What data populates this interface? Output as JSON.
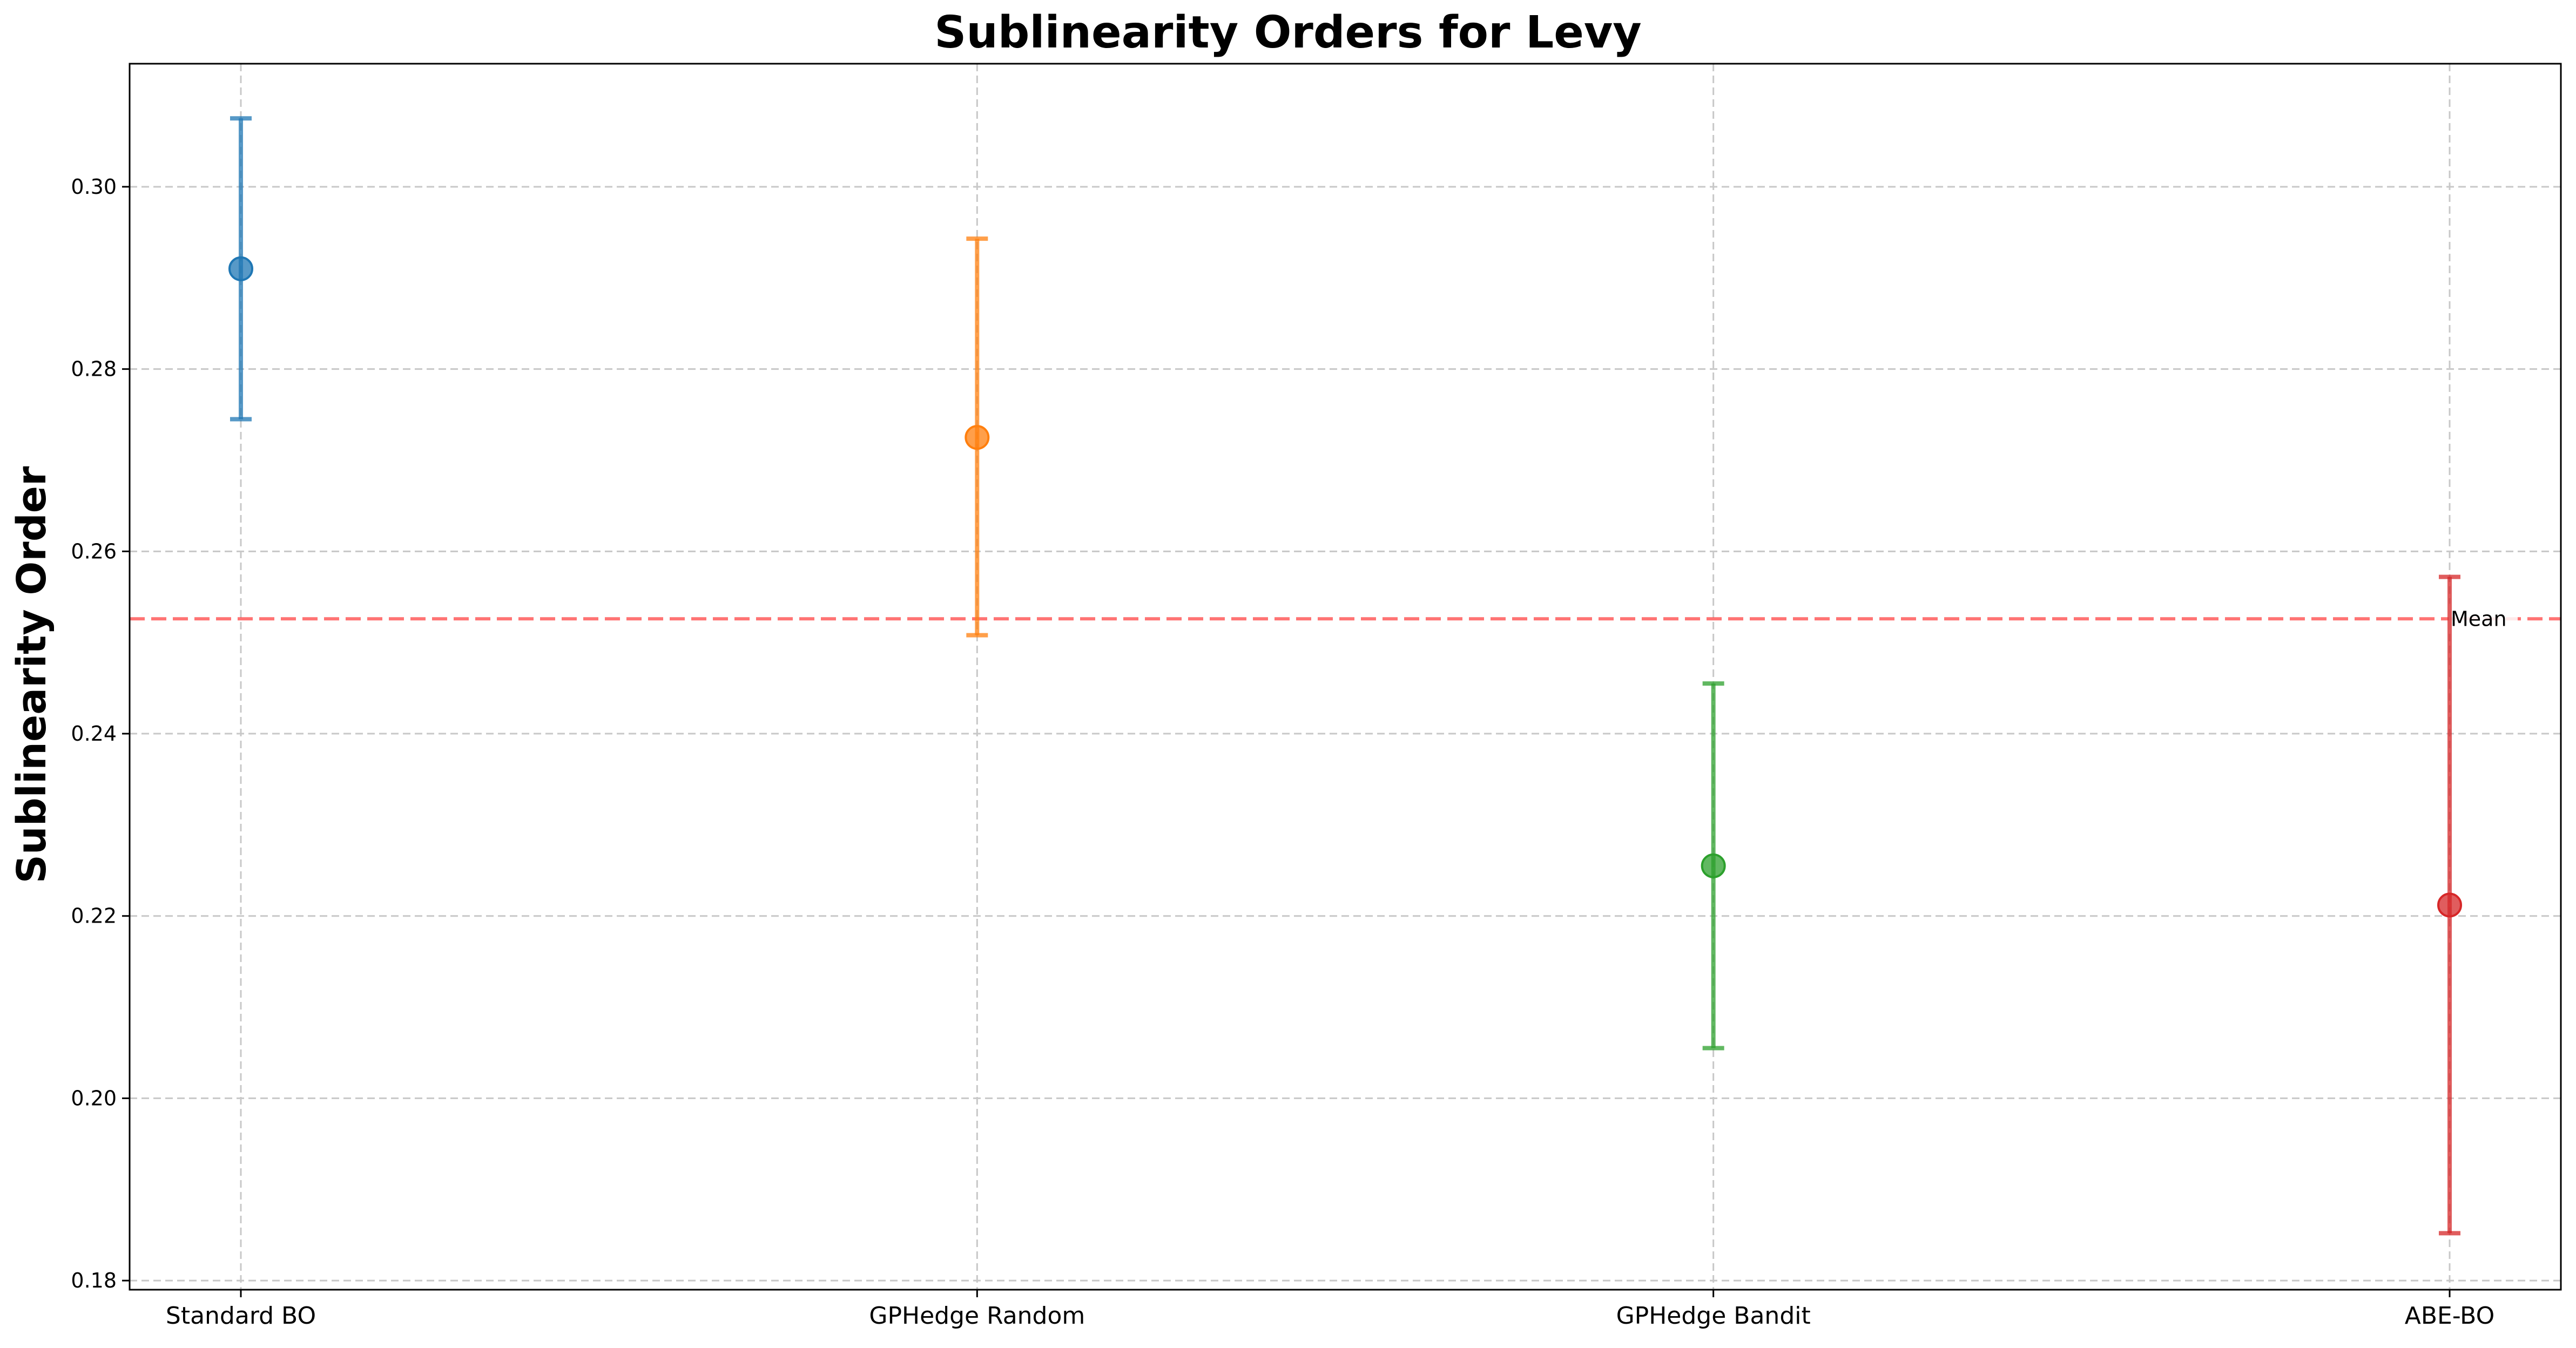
{
  "chart_data": {
    "type": "scatter",
    "title": "Sublinearity Orders for Levy",
    "xlabel": "",
    "ylabel": "Sublinearity Order",
    "categories": [
      "Standard BO",
      "GPHedge Random",
      "GPHedge Bandit",
      "ABE-BO"
    ],
    "series": [
      {
        "values": [
          0.291,
          0.2725,
          0.2255,
          0.2212
        ],
        "error_low": [
          0.2745,
          0.2508,
          0.2055,
          0.1852
        ],
        "error_high": [
          0.3075,
          0.2943,
          0.2455,
          0.2572
        ],
        "colors": [
          "#1f77b4",
          "#ff7f0e",
          "#2ca02c",
          "#d62728"
        ]
      }
    ],
    "reference_line": {
      "label": "Mean",
      "value": 0.2526,
      "color": "#ff0000",
      "style": "dashed"
    },
    "ylim": [
      0.179,
      0.3135
    ],
    "yticks": [
      0.18,
      0.2,
      0.22,
      0.24,
      0.26,
      0.28,
      0.3
    ],
    "ytick_labels": [
      "0.18",
      "0.20",
      "0.22",
      "0.24",
      "0.26",
      "0.28",
      "0.30"
    ],
    "grid": true
  }
}
